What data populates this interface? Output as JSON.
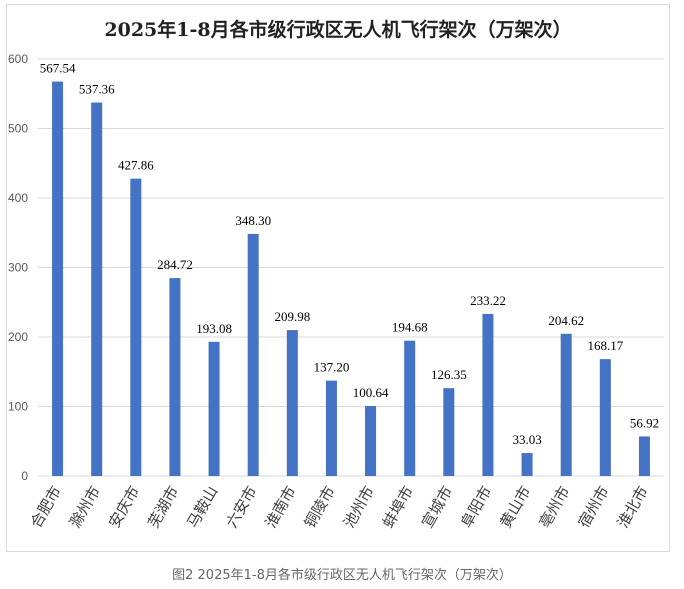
{
  "chart_data": {
    "type": "bar",
    "title": "2025年1-8月各市级行政区无人机飞行架次（万架次）",
    "caption": "图2 2025年1-8月各市级行政区无人机飞行架次（万架次）",
    "categories": [
      "合肥市",
      "滁州市",
      "安庆市",
      "芜湖市",
      "马鞍山",
      "六安市",
      "淮南市",
      "铜陵市",
      "池州市",
      "蚌埠市",
      "宣城市",
      "阜阳市",
      "黄山市",
      "亳州市",
      "宿州市",
      "淮北市"
    ],
    "values": [
      567.54,
      537.36,
      427.86,
      284.72,
      193.08,
      348.3,
      209.98,
      137.2,
      100.64,
      194.68,
      126.35,
      233.22,
      33.03,
      204.62,
      168.17,
      56.92
    ],
    "value_labels": [
      "567.54",
      "537.36",
      "427.86",
      "284.72",
      "193.08",
      "348.30",
      "209.98",
      "137.20",
      "100.64",
      "194.68",
      "126.35",
      "233.22",
      "33.03",
      "204.62",
      "168.17",
      "56.92"
    ],
    "yticks": [
      "0",
      "100",
      "200",
      "300",
      "400",
      "500",
      "600"
    ],
    "ylim": [
      0,
      600
    ],
    "grid": true,
    "legend": "none",
    "bar_color": "#4472C4",
    "grid_color": "#d9d9d9"
  }
}
